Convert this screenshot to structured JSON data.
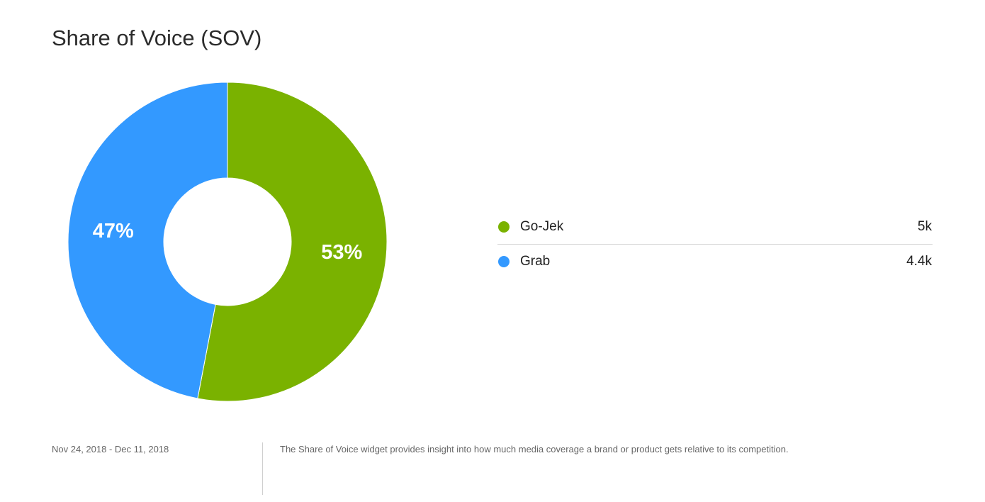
{
  "title": "Share of Voice (SOV)",
  "chart_data": {
    "type": "pie",
    "donut": true,
    "direction": "clockwise-from-top",
    "slices": [
      {
        "name": "Go-Jek",
        "percent": 53,
        "percent_label": "53%",
        "value_label": "5k",
        "color": "#7ab200"
      },
      {
        "name": "Grab",
        "percent": 47,
        "percent_label": "47%",
        "value_label": "4.4k",
        "color": "#3399ff"
      }
    ],
    "legend_placement": "right"
  },
  "footer": {
    "date_range": "Nov 24, 2018 - Dec 11, 2018",
    "description": "The Share of Voice widget provides insight into how much media coverage a brand or product gets relative to its competition."
  }
}
